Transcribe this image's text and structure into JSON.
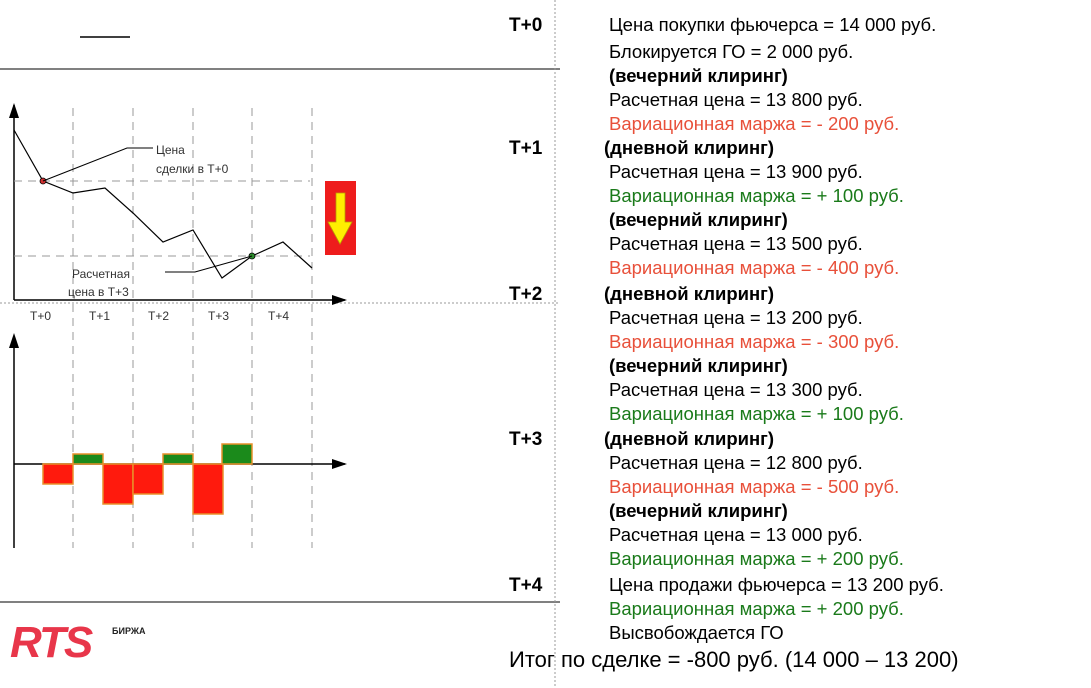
{
  "colors": {
    "red_text": "#e8503a",
    "green_text": "#1a7a1a",
    "bar_red": "#ff1a0d",
    "bar_green": "#1b8a1b",
    "bar_border": "#e8902a",
    "arrow_box": "#ee1c1c",
    "arrow_fill": "#ffee00"
  },
  "blocks": [
    {
      "label": "T+0",
      "lines": [
        {
          "text": "Цена покупки фьючерса = 14 000 руб.",
          "style": "normal"
        },
        {
          "text": "Блокируется ГО = 2 000 руб.",
          "style": "normal"
        },
        {
          "text": "(вечерний клиринг)",
          "style": "bold"
        },
        {
          "text": "Расчетная цена = 13 800 руб.",
          "style": "normal"
        },
        {
          "text": "Вариационная маржа = - 200 руб.",
          "style": "red"
        }
      ]
    },
    {
      "label": "T+1",
      "lines": [
        {
          "text": "(дневной клиринг)",
          "style": "bold"
        },
        {
          "text": "Расчетная цена = 13 900 руб.",
          "style": "normal"
        },
        {
          "text": "Вариационная маржа = + 100 руб.",
          "style": "green"
        },
        {
          "text": "(вечерний клиринг)",
          "style": "bold"
        },
        {
          "text": "Расчетная цена = 13 500 руб.",
          "style": "normal"
        },
        {
          "text": "Вариационная маржа = - 400 руб.",
          "style": "red"
        }
      ]
    },
    {
      "label": "T+2",
      "lines": [
        {
          "text": "(дневной клиринг)",
          "style": "bold"
        },
        {
          "text": "Расчетная цена = 13 200 руб.",
          "style": "normal"
        },
        {
          "text": "Вариационная маржа = - 300 руб.",
          "style": "red"
        },
        {
          "text": "(вечерний клиринг)",
          "style": "bold"
        },
        {
          "text": "Расчетная цена = 13 300 руб.",
          "style": "normal"
        },
        {
          "text": "Вариационная маржа = + 100 руб.",
          "style": "green"
        }
      ]
    },
    {
      "label": "T+3",
      "lines": [
        {
          "text": "(дневной клиринг)",
          "style": "bold"
        },
        {
          "text": "Расчетная цена = 12 800 руб.",
          "style": "normal"
        },
        {
          "text": "Вариационная маржа = - 500 руб.",
          "style": "red"
        },
        {
          "text": "(вечерний клиринг)",
          "style": "bold"
        },
        {
          "text": "Расчетная цена = 13 000 руб.",
          "style": "normal"
        },
        {
          "text": "Вариационная маржа = + 200 руб.",
          "style": "green"
        }
      ]
    },
    {
      "label": "T+4",
      "lines": [
        {
          "text": "Цена продажи фьючерса = 13 200 руб.",
          "style": "normal"
        },
        {
          "text": "Вариационная маржа = + 200 руб.",
          "style": "green"
        },
        {
          "text": "Высвобождается ГО",
          "style": "normal"
        }
      ]
    }
  ],
  "total": "Итог по сделке = -800 руб. (14 000 – 13 200)",
  "chart": {
    "x_ticks": [
      "T+0",
      "T+1",
      "T+2",
      "T+3",
      "T+4"
    ],
    "annotation_trade_price": [
      "Цена",
      "сделки в Т+0"
    ],
    "annotation_settlement": [
      "Расчетная",
      "цена в Т+3"
    ],
    "variation_margin": [
      -200,
      100,
      -400,
      -300,
      100,
      -500,
      200
    ]
  },
  "logo": {
    "name": "RTS",
    "subtitle": "БИРЖА"
  }
}
